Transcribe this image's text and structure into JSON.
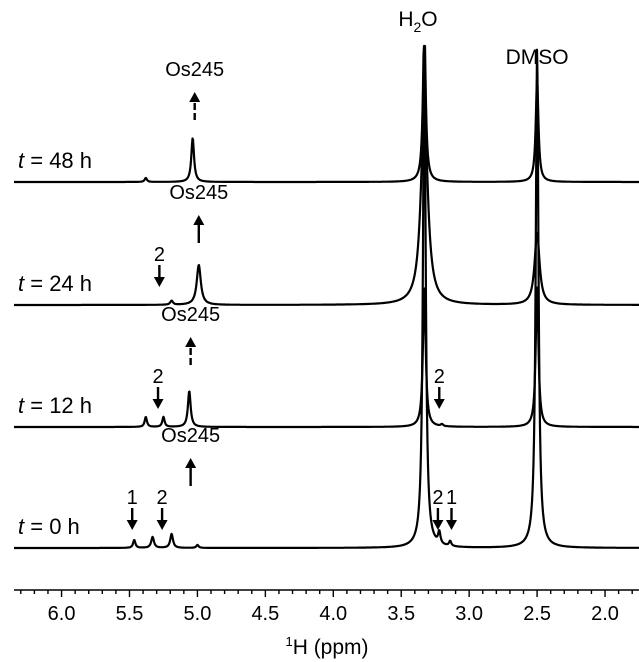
{
  "chart_data": {
    "type": "line",
    "xlabel_parts": [
      "1",
      "H (ppm)"
    ],
    "xlim": [
      6.35,
      1.75
    ],
    "x_reversed": true,
    "grid": false,
    "x_ticks": [
      6.0,
      5.5,
      5.0,
      4.5,
      4.0,
      3.5,
      3.0,
      2.5,
      2.0
    ],
    "x_tick_labels": [
      "6.0",
      "5.5",
      "5.0",
      "4.5",
      "4.0",
      "3.5",
      "3.0",
      "2.5",
      "2.0"
    ],
    "x_minor_step": 0.1,
    "solvent_labels": {
      "water": {
        "parts": [
          "H",
          "2",
          "O"
        ],
        "ppm": 3.33
      },
      "dmso": {
        "text": "DMSO",
        "ppm": 2.5
      }
    },
    "series": [
      {
        "name": "t = 48 h",
        "label_var": "t",
        "label_rest": " = 48 h",
        "peaks": [
          {
            "ppm": 5.38,
            "height": 4,
            "width": 0.01
          },
          {
            "ppm": 5.035,
            "height": 44,
            "width": 0.012
          },
          {
            "ppm": 3.33,
            "height": 160,
            "width": 0.012
          },
          {
            "ppm": 2.5,
            "height": 102,
            "width": 0.012
          }
        ],
        "annotations": [
          {
            "text": "Os245",
            "ppm": 5.02,
            "direction": "up",
            "dashed": true
          }
        ]
      },
      {
        "name": "t = 24 h",
        "label_var": "t",
        "label_rest": " = 24 h",
        "peaks": [
          {
            "ppm": 5.19,
            "height": 4,
            "width": 0.012
          },
          {
            "ppm": 4.99,
            "height": 40,
            "width": 0.018
          },
          {
            "ppm": 3.33,
            "height": 200,
            "width": 0.03
          },
          {
            "ppm": 2.5,
            "height": 72,
            "width": 0.022
          }
        ],
        "annotations": [
          {
            "text": "Os245",
            "ppm": 4.99,
            "direction": "up",
            "dashed": false
          },
          {
            "text": "2",
            "ppm": 5.28,
            "direction": "down",
            "dashed": false
          }
        ]
      },
      {
        "name": "t = 12 h",
        "label_var": "t",
        "label_rest": " = 12 h",
        "peaks": [
          {
            "ppm": 5.38,
            "height": 10,
            "width": 0.01
          },
          {
            "ppm": 5.25,
            "height": 10,
            "width": 0.01
          },
          {
            "ppm": 5.06,
            "height": 36,
            "width": 0.012
          },
          {
            "ppm": 3.33,
            "height": 140,
            "width": 0.012
          },
          {
            "ppm": 3.2,
            "height": 2,
            "width": 0.01
          },
          {
            "ppm": 2.5,
            "height": 140,
            "width": 0.012
          }
        ],
        "annotations": [
          {
            "text": "Os245",
            "ppm": 5.05,
            "direction": "up",
            "dashed": true
          },
          {
            "text": "2",
            "ppm": 5.29,
            "direction": "down",
            "dashed": false
          },
          {
            "text": "2",
            "ppm": 3.22,
            "direction": "down",
            "dashed": false
          }
        ]
      },
      {
        "name": "t = 0 h",
        "label_var": "t",
        "label_rest": " = 0 h",
        "peaks": [
          {
            "ppm": 5.465,
            "height": 8,
            "width": 0.01
          },
          {
            "ppm": 5.33,
            "height": 11,
            "width": 0.012
          },
          {
            "ppm": 5.19,
            "height": 14,
            "width": 0.012
          },
          {
            "ppm": 5.0,
            "height": 3,
            "width": 0.01
          },
          {
            "ppm": 3.33,
            "height": 500,
            "width": 0.012
          },
          {
            "ppm": 3.22,
            "height": 12,
            "width": 0.01
          },
          {
            "ppm": 3.14,
            "height": 5,
            "width": 0.01
          },
          {
            "ppm": 2.5,
            "height": 500,
            "width": 0.012
          }
        ],
        "annotations": [
          {
            "text": "Os245",
            "ppm": 5.05,
            "direction": "up",
            "dashed": false
          },
          {
            "text": "1",
            "ppm": 5.48,
            "direction": "down",
            "dashed": false
          },
          {
            "text": "2",
            "ppm": 5.26,
            "direction": "down",
            "dashed": false
          },
          {
            "text": "2",
            "ppm": 3.23,
            "direction": "down",
            "dashed": false
          },
          {
            "text": "1",
            "ppm": 3.13,
            "direction": "down",
            "dashed": false
          }
        ]
      }
    ]
  }
}
